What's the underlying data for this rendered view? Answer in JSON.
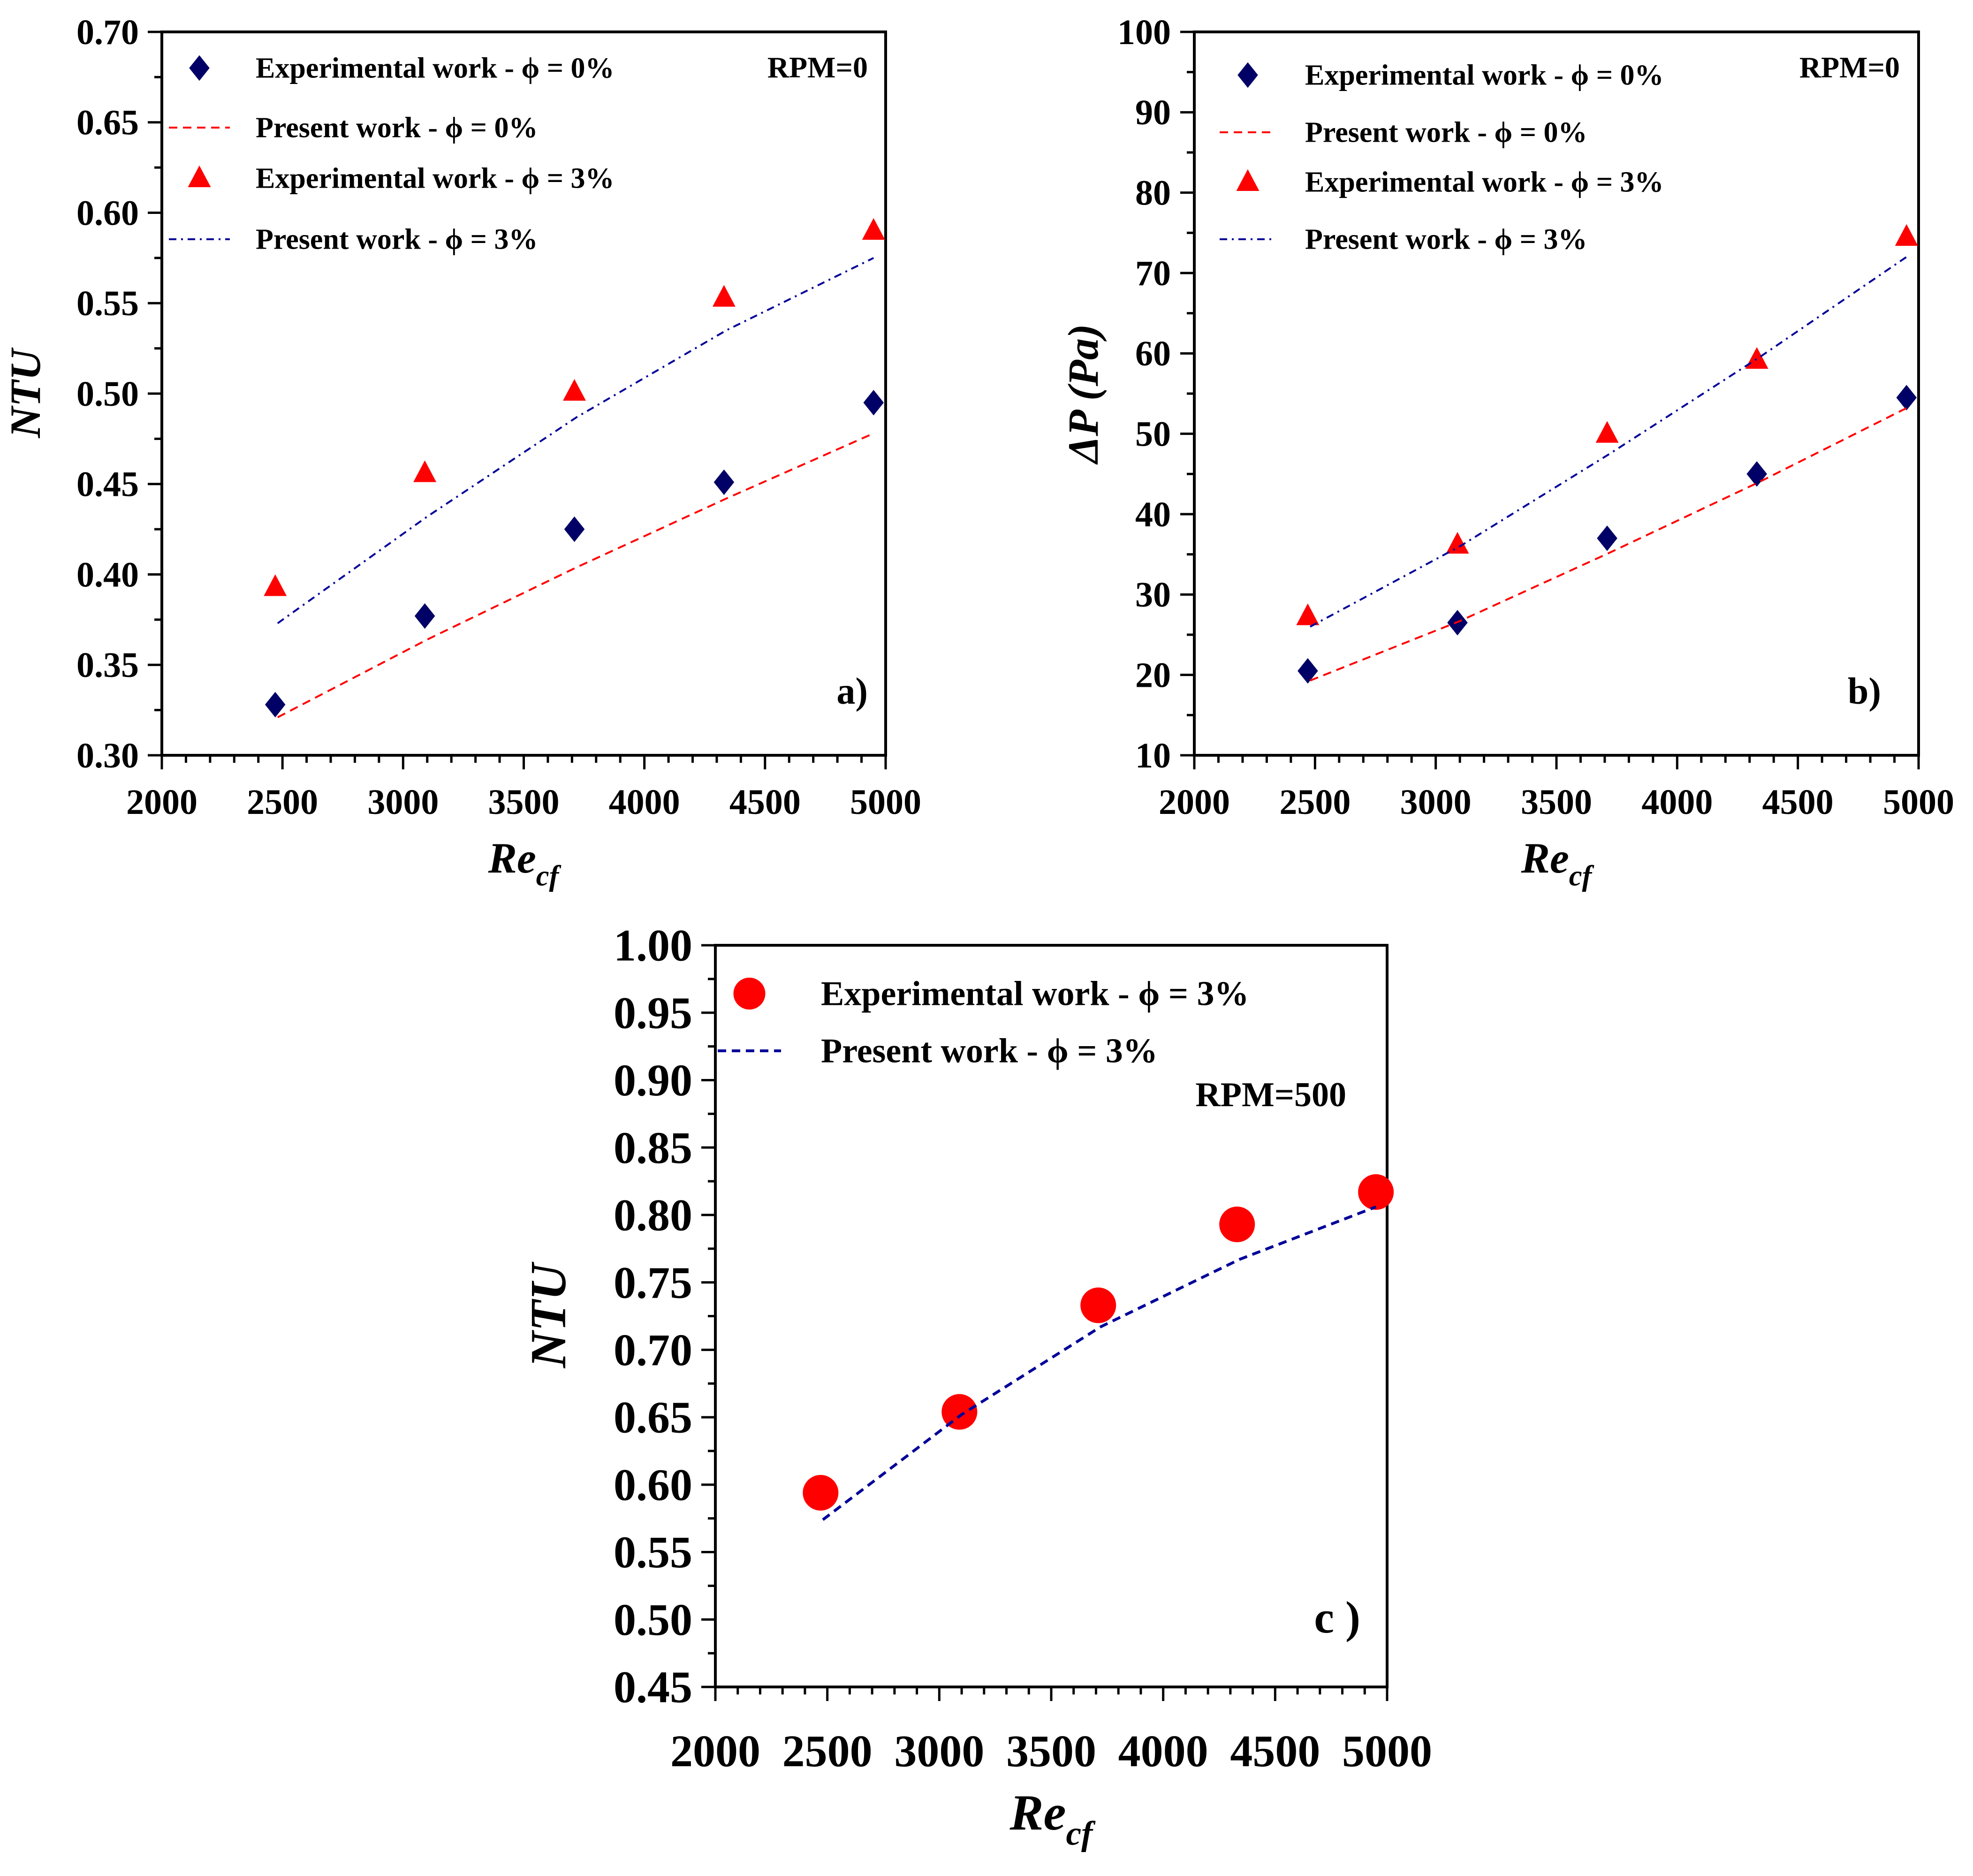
{
  "chart_data": [
    {
      "id": "a",
      "type": "scatter",
      "panel_label": "a)",
      "annotation": "RPM=0",
      "xlabel": "Re",
      "xlabel_sub": "cf",
      "ylabel": "NTU",
      "xlim": [
        2000,
        5000
      ],
      "ylim": [
        0.3,
        0.7
      ],
      "xticks": [
        2000,
        2500,
        3000,
        3500,
        4000,
        4500,
        5000
      ],
      "xtick_labels": [
        "2000",
        "2500",
        "3000",
        "3500",
        "4000",
        "4500",
        "5000"
      ],
      "yticks": [
        0.3,
        0.35,
        0.4,
        0.45,
        0.5,
        0.55,
        0.6,
        0.65,
        0.7
      ],
      "ytick_labels": [
        "0.30",
        "0.35",
        "0.40",
        "0.45",
        "0.50",
        "0.55",
        "0.60",
        "0.65",
        "0.70"
      ],
      "series": [
        {
          "name": "Experimental work - ϕ = 0%",
          "kind": "marker",
          "marker": "diamond",
          "color": "#000066",
          "x": [
            2470,
            3090,
            3710,
            4330,
            4950
          ],
          "y": [
            0.328,
            0.377,
            0.425,
            0.451,
            0.495
          ]
        },
        {
          "name": "Present work - ϕ = 0%",
          "kind": "line",
          "dash": "dash",
          "color": "#ff0000",
          "x": [
            2480,
            3100,
            3720,
            4340,
            4950
          ],
          "y": [
            0.321,
            0.364,
            0.404,
            0.442,
            0.478
          ]
        },
        {
          "name": "Experimental work - ϕ = 3%",
          "kind": "marker",
          "marker": "triangle",
          "color": "#ff0000",
          "x": [
            2470,
            3090,
            3710,
            4330,
            4950
          ],
          "y": [
            0.393,
            0.456,
            0.501,
            0.553,
            0.59
          ]
        },
        {
          "name": "Present work - ϕ = 3%",
          "kind": "line",
          "dash": "dashdot",
          "color": "#000099",
          "x": [
            2480,
            3100,
            3720,
            4340,
            4950
          ],
          "y": [
            0.373,
            0.432,
            0.487,
            0.535,
            0.575
          ]
        }
      ]
    },
    {
      "id": "b",
      "type": "scatter",
      "panel_label": "b)",
      "annotation": "RPM=0",
      "xlabel": "Re",
      "xlabel_sub": "cf",
      "ylabel": "ΔP (Pa)",
      "xlim": [
        2000,
        5000
      ],
      "ylim": [
        10,
        100
      ],
      "xticks": [
        2000,
        2500,
        3000,
        3500,
        4000,
        4500,
        5000
      ],
      "xtick_labels": [
        "2000",
        "2500",
        "3000",
        "3500",
        "4000",
        "4500",
        "5000"
      ],
      "yticks": [
        10,
        20,
        30,
        40,
        50,
        60,
        70,
        80,
        90,
        100
      ],
      "ytick_labels": [
        "10",
        "20",
        "30",
        "40",
        "50",
        "60",
        "70",
        "80",
        "90",
        "100"
      ],
      "series": [
        {
          "name": "Experimental work - ϕ = 0%",
          "kind": "marker",
          "marker": "diamond",
          "color": "#000066",
          "x": [
            2470,
            3090,
            3710,
            4330,
            4950
          ],
          "y": [
            20.5,
            26.5,
            37.0,
            45.0,
            54.5
          ]
        },
        {
          "name": "Present work - ϕ = 0%",
          "kind": "line",
          "dash": "dash",
          "color": "#ff0000",
          "x": [
            2480,
            3100,
            3720,
            4340,
            4950
          ],
          "y": [
            19.3,
            26.7,
            35.2,
            44.0,
            53.2
          ]
        },
        {
          "name": "Experimental work - ϕ = 3%",
          "kind": "marker",
          "marker": "triangle",
          "color": "#ff0000",
          "x": [
            2470,
            3090,
            3710,
            4330,
            4950
          ],
          "y": [
            27.3,
            36.2,
            50.0,
            59.2,
            74.5
          ]
        },
        {
          "name": "Present work - ϕ = 3%",
          "kind": "line",
          "dash": "dashdot",
          "color": "#000099",
          "x": [
            2480,
            3100,
            3720,
            4340,
            4950
          ],
          "y": [
            26.0,
            36.0,
            47.5,
            59.5,
            72.0
          ]
        }
      ]
    },
    {
      "id": "c",
      "type": "scatter",
      "panel_label": "c )",
      "annotation": "RPM=500",
      "xlabel": "Re",
      "xlabel_sub": "cf",
      "ylabel": "NTU",
      "xlim": [
        2000,
        5000
      ],
      "ylim": [
        0.45,
        1.0
      ],
      "xticks": [
        2000,
        2500,
        3000,
        3500,
        4000,
        4500,
        5000
      ],
      "xtick_labels": [
        "2000",
        "2500",
        "3000",
        "3500",
        "4000",
        "4500",
        "5000"
      ],
      "yticks": [
        0.45,
        0.5,
        0.55,
        0.6,
        0.65,
        0.7,
        0.75,
        0.8,
        0.85,
        0.9,
        0.95,
        1.0
      ],
      "ytick_labels": [
        "0.45",
        "0.50",
        "0.55",
        "0.60",
        "0.65",
        "0.70",
        "0.75",
        "0.80",
        "0.85",
        "0.90",
        "0.95",
        "1.00"
      ],
      "series": [
        {
          "name": "Experimental work - ϕ = 3%",
          "kind": "marker",
          "marker": "circle",
          "color": "#ff0000",
          "x": [
            2470,
            3090,
            3710,
            4330,
            4950
          ],
          "y": [
            0.594,
            0.654,
            0.733,
            0.793,
            0.817
          ]
        },
        {
          "name": "Present work - ϕ = 3%",
          "kind": "line",
          "dash": "dash",
          "color": "#000099",
          "x": [
            2480,
            3100,
            3720,
            4340,
            4950
          ],
          "y": [
            0.574,
            0.652,
            0.717,
            0.767,
            0.806
          ]
        }
      ]
    }
  ]
}
